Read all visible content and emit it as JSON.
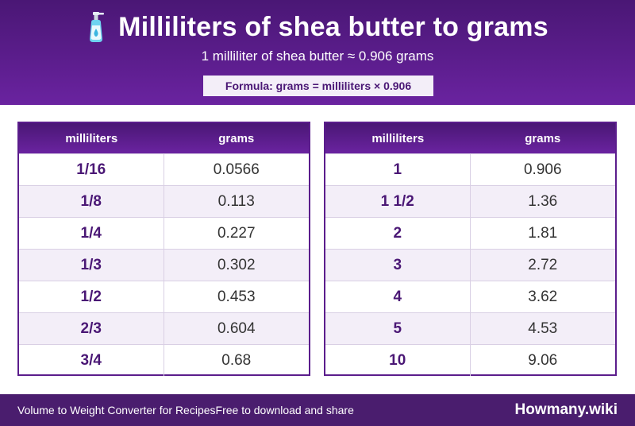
{
  "header": {
    "icon": "lotion-bottle-icon",
    "title": "Milliliters of shea butter to grams",
    "subtitle": "1 milliliter of shea butter ≈ 0.906 grams",
    "formula": "Formula: grams = milliliters × 0.906"
  },
  "tables": [
    {
      "columns": [
        "milliliters",
        "grams"
      ],
      "rows": [
        [
          "1/16",
          "0.0566"
        ],
        [
          "1/8",
          "0.113"
        ],
        [
          "1/4",
          "0.227"
        ],
        [
          "1/3",
          "0.302"
        ],
        [
          "1/2",
          "0.453"
        ],
        [
          "2/3",
          "0.604"
        ],
        [
          "3/4",
          "0.68"
        ]
      ]
    },
    {
      "columns": [
        "milliliters",
        "grams"
      ],
      "rows": [
        [
          "1",
          "0.906"
        ],
        [
          "1 1/2",
          "1.36"
        ],
        [
          "2",
          "1.81"
        ],
        [
          "3",
          "2.72"
        ],
        [
          "4",
          "3.62"
        ],
        [
          "5",
          "4.53"
        ],
        [
          "10",
          "9.06"
        ]
      ]
    }
  ],
  "footer": {
    "left_text": "Volume to Weight Converter for Recipes",
    "middle_text": "Free to download and share",
    "brand": "Howmany.wiki"
  },
  "colors": {
    "primary_purple": "#5b1d8c",
    "header_dark": "#4a1775",
    "row_alt": "#f3eef8",
    "footer_bg": "#4a1d6e"
  }
}
